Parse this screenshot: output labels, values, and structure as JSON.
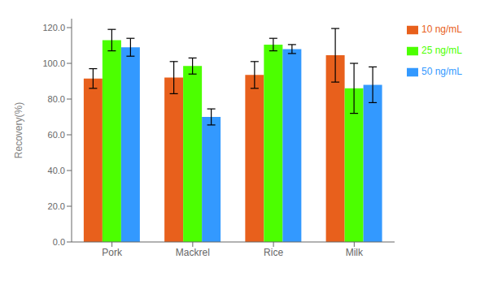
{
  "chart_data": {
    "type": "bar",
    "ylabel": "Recovery(%)",
    "categories": [
      "Pork",
      "Mackrel",
      "Rice",
      "Milk"
    ],
    "series": [
      {
        "name": "10 ng/mL",
        "color": "#E8601C",
        "values": [
          91.5,
          92.0,
          93.5,
          104.5
        ],
        "errors": [
          5.5,
          9.0,
          7.5,
          15.0
        ]
      },
      {
        "name": "25 ng/mL",
        "color": "#4CFF00",
        "values": [
          113.0,
          98.5,
          110.5,
          86.0
        ],
        "errors": [
          6.0,
          4.5,
          3.5,
          14.0
        ]
      },
      {
        "name": "50 ng/mL",
        "color": "#3399FF",
        "values": [
          109.0,
          70.0,
          108.0,
          88.0
        ],
        "errors": [
          5.0,
          4.5,
          2.5,
          10.0
        ]
      }
    ],
    "ylim": [
      0,
      125
    ],
    "yticks": [
      {
        "value": 0,
        "label": "0.0"
      },
      {
        "value": 20,
        "label": "20.0"
      },
      {
        "value": 40,
        "label": "40.0"
      },
      {
        "value": 60,
        "label": "60.0"
      },
      {
        "value": 80,
        "label": "80.0"
      },
      {
        "value": 100,
        "label": "100.0"
      },
      {
        "value": 120,
        "label": "120.0"
      }
    ],
    "grid": false,
    "legend": "right"
  }
}
